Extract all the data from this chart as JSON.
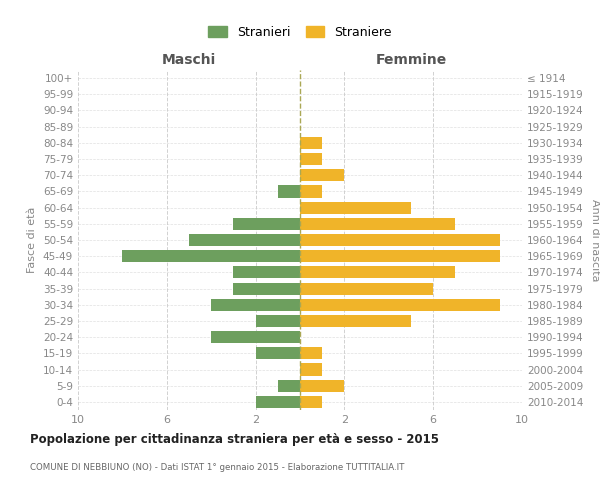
{
  "age_groups": [
    "0-4",
    "5-9",
    "10-14",
    "15-19",
    "20-24",
    "25-29",
    "30-34",
    "35-39",
    "40-44",
    "45-49",
    "50-54",
    "55-59",
    "60-64",
    "65-69",
    "70-74",
    "75-79",
    "80-84",
    "85-89",
    "90-94",
    "95-99",
    "100+"
  ],
  "birth_years": [
    "2010-2014",
    "2005-2009",
    "2000-2004",
    "1995-1999",
    "1990-1994",
    "1985-1989",
    "1980-1984",
    "1975-1979",
    "1970-1974",
    "1965-1969",
    "1960-1964",
    "1955-1959",
    "1950-1954",
    "1945-1949",
    "1940-1944",
    "1935-1939",
    "1930-1934",
    "1925-1929",
    "1920-1924",
    "1915-1919",
    "≤ 1914"
  ],
  "maschi": [
    2,
    1,
    0,
    2,
    4,
    2,
    4,
    3,
    3,
    8,
    5,
    3,
    0,
    1,
    0,
    0,
    0,
    0,
    0,
    0,
    0
  ],
  "femmine": [
    1,
    2,
    1,
    1,
    0,
    5,
    9,
    6,
    7,
    9,
    9,
    7,
    5,
    1,
    2,
    1,
    1,
    0,
    0,
    0,
    0
  ],
  "maschi_color": "#6d9f5e",
  "femmine_color": "#f0b429",
  "title": "Popolazione per cittadinanza straniera per età e sesso - 2015",
  "subtitle": "COMUNE DI NEBBIUNO (NO) - Dati ISTAT 1° gennaio 2015 - Elaborazione TUTTITALIA.IT",
  "legend_maschi": "Stranieri",
  "legend_femmine": "Straniere",
  "label_left": "Maschi",
  "label_right": "Femmine",
  "ylabel_left": "Fasce di età",
  "ylabel_right": "Anni di nascita",
  "xlim": 10,
  "background_color": "#ffffff",
  "grid_color": "#cccccc",
  "bar_height": 0.75
}
